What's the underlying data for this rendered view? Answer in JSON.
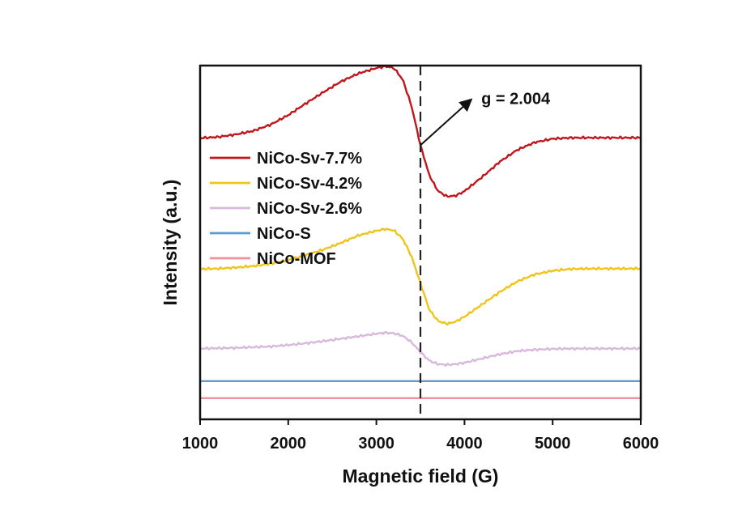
{
  "chart_data": {
    "type": "line",
    "title": "",
    "xlabel": "Magnetic field (G)",
    "ylabel": "Intensity (a.u.)",
    "xlim": [
      1000,
      6000
    ],
    "xticks": [
      1000,
      2000,
      3000,
      4000,
      5000,
      6000
    ],
    "ylim": [
      0,
      100
    ],
    "yticks_shown": false,
    "grid": false,
    "legend_position": "upper-left",
    "x": [
      1000,
      1200,
      1400,
      1600,
      1800,
      2000,
      2200,
      2400,
      2600,
      2800,
      3000,
      3100,
      3200,
      3300,
      3400,
      3500,
      3600,
      3700,
      3800,
      3900,
      4000,
      4200,
      4400,
      4600,
      4800,
      5000,
      5200,
      5400,
      5600,
      5800,
      6000
    ],
    "series": [
      {
        "name": "NiCo-Sv-7.7%",
        "color": "#c0161c",
        "values": [
          79.5,
          79.8,
          80.5,
          81.5,
          83.3,
          86.0,
          89.3,
          92.5,
          95.5,
          97.8,
          99.3,
          99.8,
          99.3,
          96.0,
          88.5,
          77.5,
          69.0,
          64.5,
          63.0,
          63.2,
          64.5,
          68.5,
          72.8,
          76.2,
          78.3,
          79.3,
          79.6,
          79.6,
          79.6,
          79.6,
          79.6
        ]
      },
      {
        "name": "NiCo-Sv-4.2%",
        "color": "#f0c419",
        "values": [
          42.5,
          42.6,
          42.9,
          43.3,
          44.0,
          45.0,
          46.4,
          48.0,
          49.9,
          52.0,
          53.3,
          53.8,
          53.4,
          51.0,
          46.0,
          38.5,
          31.0,
          27.8,
          27.0,
          27.6,
          29.0,
          32.5,
          36.0,
          39.0,
          41.0,
          42.0,
          42.5,
          42.6,
          42.6,
          42.6,
          42.6
        ]
      },
      {
        "name": "NiCo-Sv-2.6%",
        "color": "#d8b8dc",
        "values": [
          20.0,
          20.1,
          20.2,
          20.4,
          20.6,
          21.0,
          21.5,
          22.1,
          22.8,
          23.5,
          24.2,
          24.5,
          24.3,
          23.6,
          21.8,
          19.0,
          16.6,
          15.6,
          15.4,
          15.6,
          16.0,
          17.2,
          18.4,
          19.3,
          19.7,
          19.9,
          20.0,
          20.0,
          20.0,
          20.0,
          20.0
        ]
      },
      {
        "name": "NiCo-S",
        "color": "#5b9bd5",
        "values": [
          10.8,
          10.8,
          10.8,
          10.8,
          10.8,
          10.8,
          10.8,
          10.8,
          10.8,
          10.8,
          10.8,
          10.8,
          10.8,
          10.8,
          10.8,
          10.8,
          10.8,
          10.8,
          10.8,
          10.8,
          10.8,
          10.8,
          10.8,
          10.8,
          10.8,
          10.8,
          10.8,
          10.8,
          10.8,
          10.8,
          10.8
        ]
      },
      {
        "name": "NiCo-MOF",
        "color": "#e8949c",
        "values": [
          6.0,
          6.0,
          6.0,
          6.0,
          6.0,
          6.0,
          6.0,
          6.0,
          6.0,
          6.0,
          6.0,
          6.0,
          6.0,
          6.0,
          6.0,
          6.0,
          6.0,
          6.0,
          6.0,
          6.0,
          6.0,
          6.0,
          6.0,
          6.0,
          6.0,
          6.0,
          6.0,
          6.0,
          6.0,
          6.0,
          6.0
        ]
      }
    ],
    "reference_line": {
      "x": 3500,
      "style": "dashed",
      "color": "#222222"
    },
    "annotation": {
      "text": "g = 2.004",
      "arrow_from": [
        3500,
        77.5
      ],
      "arrow_to": [
        4080,
        90.5
      ]
    }
  }
}
